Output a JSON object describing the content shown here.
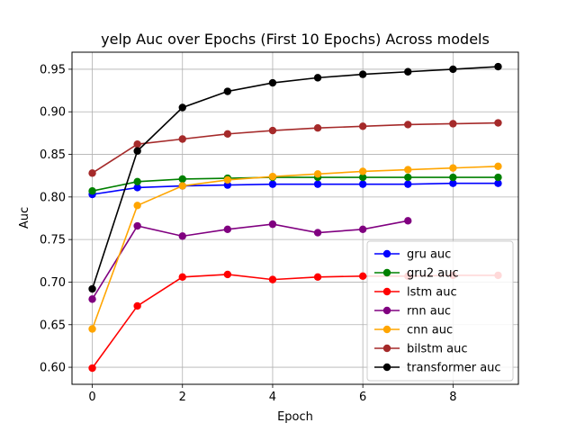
{
  "chart_data": {
    "type": "line",
    "title": "yelp Auc over Epochs (First 10 Epochs) Across models",
    "xlabel": "Epoch",
    "ylabel": "Auc",
    "xlim": [
      -0.45,
      9.45
    ],
    "ylim": [
      0.58,
      0.97
    ],
    "xticks": [
      0,
      2,
      4,
      6,
      8
    ],
    "yticks": [
      0.6,
      0.65,
      0.7,
      0.75,
      0.8,
      0.85,
      0.9,
      0.95
    ],
    "grid": true,
    "legend_position": "lower-right",
    "series": [
      {
        "name": "gru auc",
        "color": "#0000ff",
        "x": [
          0,
          1,
          2,
          3,
          4,
          5,
          6,
          7,
          8,
          9
        ],
        "values": [
          0.803,
          0.811,
          0.813,
          0.814,
          0.815,
          0.815,
          0.815,
          0.815,
          0.816,
          0.816
        ]
      },
      {
        "name": "gru2 auc",
        "color": "#008000",
        "x": [
          0,
          1,
          2,
          3,
          4,
          5,
          6,
          7,
          8,
          9
        ],
        "values": [
          0.807,
          0.818,
          0.821,
          0.822,
          0.823,
          0.823,
          0.823,
          0.823,
          0.823,
          0.823
        ]
      },
      {
        "name": "lstm auc",
        "color": "#ff0000",
        "x": [
          0,
          1,
          2,
          3,
          4,
          5,
          6,
          7,
          8,
          9
        ],
        "values": [
          0.599,
          0.672,
          0.706,
          0.709,
          0.703,
          0.706,
          0.707,
          0.707,
          0.708,
          0.708
        ]
      },
      {
        "name": "rnn auc",
        "color": "#800080",
        "x": [
          0,
          1,
          2,
          3,
          4,
          5,
          6,
          7
        ],
        "values": [
          0.68,
          0.766,
          0.754,
          0.762,
          0.768,
          0.758,
          0.762,
          0.772
        ]
      },
      {
        "name": "cnn auc",
        "color": "#ffa500",
        "x": [
          0,
          1,
          2,
          3,
          4,
          5,
          6,
          7,
          8,
          9
        ],
        "values": [
          0.645,
          0.79,
          0.813,
          0.82,
          0.824,
          0.827,
          0.83,
          0.832,
          0.834,
          0.836
        ]
      },
      {
        "name": "bilstm auc",
        "color": "#a52a2a",
        "x": [
          0,
          1,
          2,
          3,
          4,
          5,
          6,
          7,
          8,
          9
        ],
        "values": [
          0.828,
          0.862,
          0.868,
          0.874,
          0.878,
          0.881,
          0.883,
          0.885,
          0.886,
          0.887
        ]
      },
      {
        "name": "transformer auc",
        "color": "#000000",
        "x": [
          0,
          1,
          2,
          3,
          4,
          5,
          6,
          7,
          8,
          9
        ],
        "values": [
          0.692,
          0.854,
          0.905,
          0.924,
          0.934,
          0.94,
          0.944,
          0.947,
          0.95,
          0.953
        ]
      }
    ]
  }
}
